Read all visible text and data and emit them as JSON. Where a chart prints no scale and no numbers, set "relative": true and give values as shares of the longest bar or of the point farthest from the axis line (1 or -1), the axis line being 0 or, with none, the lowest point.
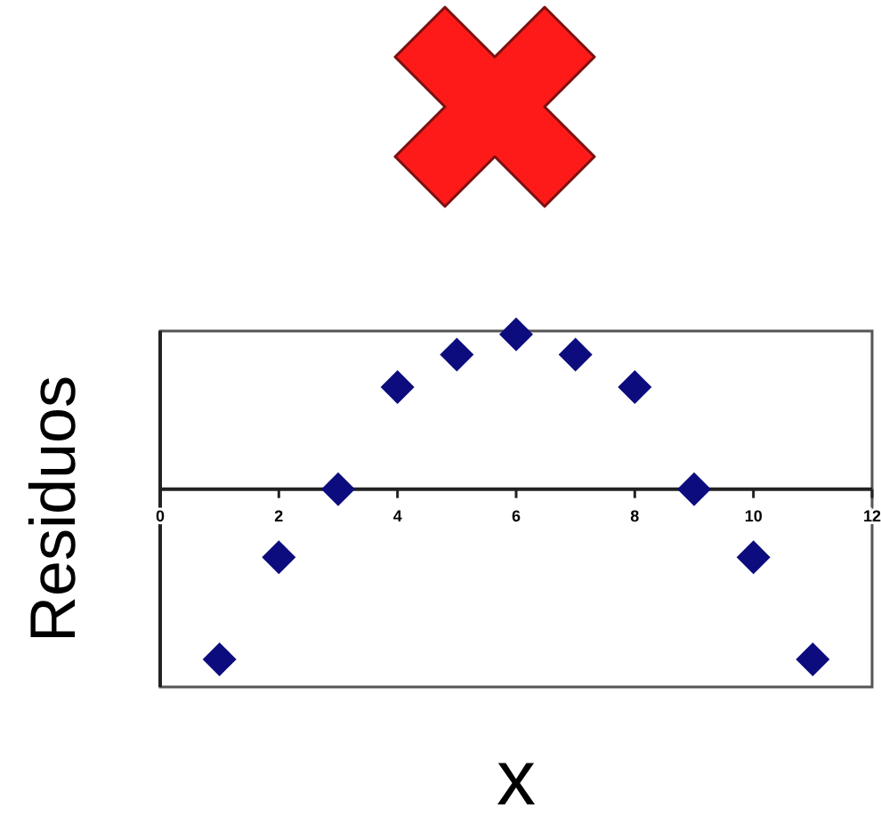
{
  "chart_data": {
    "type": "scatter",
    "xlabel": "x",
    "ylabel": "Residuos",
    "relative": true,
    "x": [
      1,
      2,
      3,
      4,
      5,
      6,
      7,
      8,
      9,
      10,
      11
    ],
    "values": [
      -1,
      -0.4,
      0,
      0.6,
      0.79,
      0.91,
      0.79,
      0.6,
      0,
      -0.4,
      -1
    ],
    "color": "#0c0c7e",
    "marker": "diamond",
    "xlim": [
      0,
      12
    ],
    "xticks": [
      0,
      2,
      4,
      6,
      8,
      10,
      12
    ],
    "grid": false
  }
}
